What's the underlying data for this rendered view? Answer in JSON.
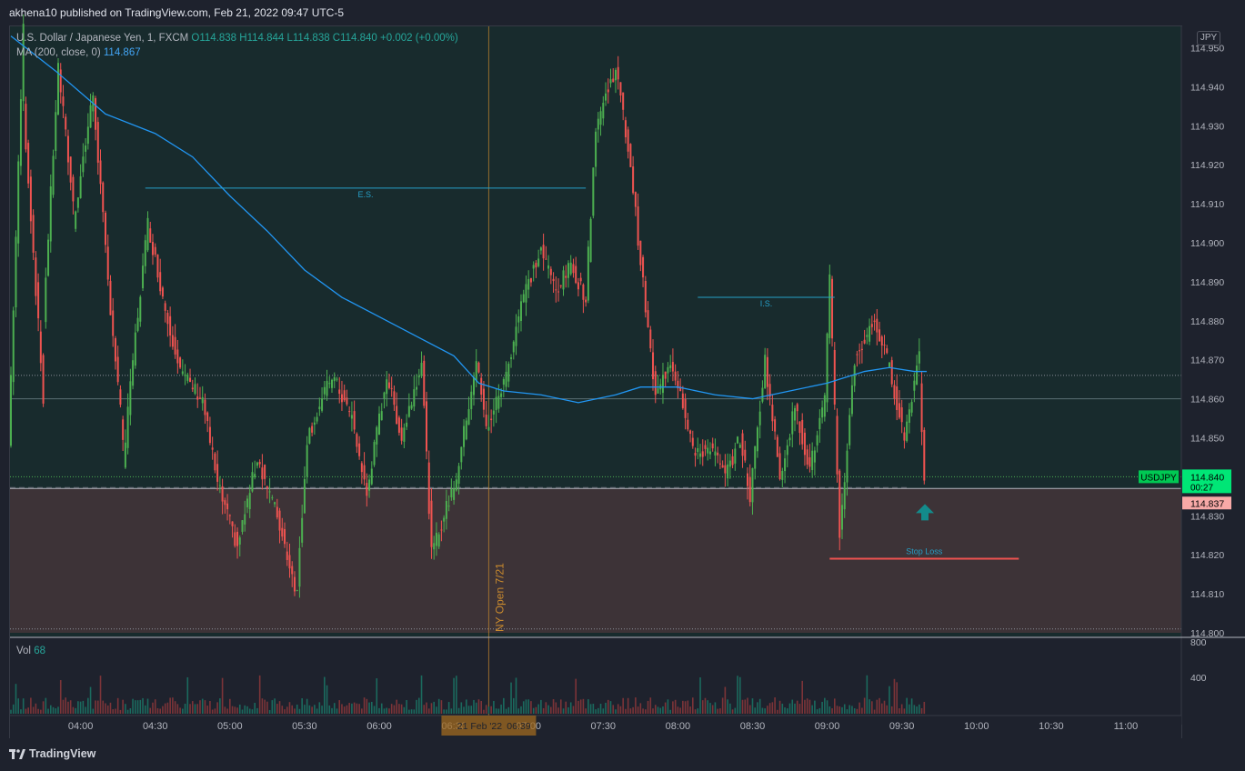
{
  "header": {
    "published_text": "akhena10 published on TradingView.com, Feb 21, 2022 09:47 UTC-5"
  },
  "legend": {
    "symbol": "U.S. Dollar / Japanese Yen, 1, FXCM",
    "ohlc": "O114.838  H114.844  L114.838  C114.840  +0.002 (+0.00%)",
    "ma_label": "MA (200, close, 0)",
    "ma_value": "114.867"
  },
  "volume": {
    "label": "Vol",
    "value": "68"
  },
  "currency_badge": "JPY",
  "footer": {
    "brand": "TradingView"
  },
  "colors": {
    "up": "#26a69a",
    "up_bright": "#4caf50",
    "down": "#ef5350",
    "ma": "#2196f3",
    "annotation_line": "#26a0c8",
    "stop_loss": "#ef5350",
    "price_badge": "#00e676",
    "prev_badge": "#f7a9a7",
    "arrow": "#138b8b",
    "ny_open": "#c98a2e"
  },
  "chart_data": {
    "type": "candlestick",
    "symbol": "USDJPY",
    "timeframe": "1",
    "y_ticks": [
      "114.950",
      "114.940",
      "114.930",
      "114.920",
      "114.910",
      "114.900",
      "114.890",
      "114.880",
      "114.870",
      "114.860",
      "114.850",
      "114.840",
      "114.830",
      "114.820",
      "114.810",
      "114.800"
    ],
    "ylim": [
      114.8,
      114.955
    ],
    "x_ticks": [
      "04:00",
      "04:30",
      "05:00",
      "05:30",
      "06:00",
      "06:30",
      "07:00",
      "07:30",
      "08:00",
      "08:30",
      "09:00",
      "09:30",
      "10:00",
      "10:30",
      "11:00"
    ],
    "x_tick_minutes": [
      240,
      270,
      300,
      330,
      360,
      390,
      420,
      450,
      480,
      510,
      540,
      570,
      600,
      630,
      660
    ],
    "x_range_minutes": [
      212,
      675
    ],
    "date_label": "21 Feb '22",
    "date_label_time": "06:39",
    "volume_ticks": [
      "800",
      "400"
    ],
    "current_price": {
      "label": "USDJPY",
      "value": "114.840",
      "countdown": "00:27"
    },
    "previous_close": "114.837",
    "annotations": [
      {
        "text": "E.S.",
        "price": 114.914,
        "from_minute": 266,
        "to_minute": 443
      },
      {
        "text": "I.S.",
        "price": 114.886,
        "from_minute": 488,
        "to_minute": 543
      },
      {
        "text": "Stop Loss",
        "price": 114.819,
        "from_minute": 541,
        "to_minute": 617
      }
    ],
    "dotted_levels": [
      114.866,
      114.84,
      114.801
    ],
    "solid_level": 114.86,
    "shaded_zone": [
      114.8,
      114.837
    ],
    "ny_open": {
      "text": "NY Open 7/21",
      "minute": 404
    },
    "ma_points": [
      [
        212,
        114.953
      ],
      [
        230,
        114.944
      ],
      [
        250,
        114.933
      ],
      [
        270,
        114.928
      ],
      [
        285,
        114.922
      ],
      [
        300,
        114.912
      ],
      [
        315,
        114.903
      ],
      [
        330,
        114.893
      ],
      [
        345,
        114.886
      ],
      [
        360,
        114.881
      ],
      [
        375,
        114.876
      ],
      [
        390,
        114.871
      ],
      [
        400,
        114.864
      ],
      [
        410,
        114.862
      ],
      [
        425,
        114.861
      ],
      [
        440,
        114.859
      ],
      [
        455,
        114.861
      ],
      [
        465,
        114.863
      ],
      [
        480,
        114.863
      ],
      [
        495,
        114.861
      ],
      [
        510,
        114.86
      ],
      [
        525,
        114.862
      ],
      [
        540,
        114.864
      ],
      [
        555,
        114.867
      ],
      [
        565,
        114.868
      ],
      [
        575,
        114.867
      ],
      [
        580,
        114.867
      ]
    ],
    "candles_key": [
      [
        212,
        114.848,
        114.955
      ],
      [
        218,
        114.935,
        114.86
      ],
      [
        226,
        114.88,
        114.945
      ],
      [
        232,
        114.945,
        114.91
      ],
      [
        238,
        114.905,
        114.938
      ],
      [
        246,
        114.938,
        114.89
      ],
      [
        252,
        114.89,
        114.85
      ],
      [
        258,
        114.842,
        114.87
      ],
      [
        262,
        114.87,
        114.905
      ],
      [
        268,
        114.905,
        114.88
      ],
      [
        276,
        114.88,
        114.866
      ],
      [
        282,
        114.866,
        114.86
      ],
      [
        290,
        114.86,
        114.838
      ],
      [
        296,
        114.838,
        114.822
      ],
      [
        304,
        114.822,
        114.845
      ],
      [
        312,
        114.845,
        114.83
      ],
      [
        320,
        114.83,
        114.81
      ],
      [
        328,
        114.812,
        114.85
      ],
      [
        332,
        114.85,
        114.866
      ],
      [
        342,
        114.866,
        114.855
      ],
      [
        350,
        114.855,
        114.835
      ],
      [
        356,
        114.836,
        114.866
      ],
      [
        364,
        114.866,
        114.85
      ],
      [
        370,
        114.85,
        114.87
      ],
      [
        378,
        114.87,
        114.82
      ],
      [
        382,
        114.82,
        114.84
      ],
      [
        392,
        114.84,
        114.87
      ],
      [
        400,
        114.87,
        114.852
      ],
      [
        404,
        114.852,
        114.866
      ],
      [
        412,
        114.866,
        114.885
      ],
      [
        418,
        114.885,
        114.898
      ],
      [
        426,
        114.898,
        114.888
      ],
      [
        432,
        114.888,
        114.894
      ],
      [
        438,
        114.894,
        114.886
      ],
      [
        444,
        114.886,
        114.93
      ],
      [
        448,
        114.93,
        114.945
      ],
      [
        456,
        114.945,
        114.92
      ],
      [
        462,
        114.92,
        114.895
      ],
      [
        466,
        114.895,
        114.86
      ],
      [
        472,
        114.86,
        114.87
      ],
      [
        478,
        114.87,
        114.862
      ],
      [
        482,
        114.862,
        114.845
      ],
      [
        488,
        114.845,
        114.848
      ],
      [
        494,
        114.848,
        114.84
      ],
      [
        500,
        114.84,
        114.85
      ],
      [
        506,
        114.85,
        114.835
      ],
      [
        510,
        114.835,
        114.87
      ],
      [
        516,
        114.87,
        114.84
      ],
      [
        522,
        114.84,
        114.858
      ],
      [
        528,
        114.858,
        114.842
      ],
      [
        534,
        114.842,
        114.86
      ],
      [
        540,
        114.86,
        114.89
      ],
      [
        542,
        114.89,
        114.825
      ],
      [
        546,
        114.825,
        114.87
      ],
      [
        552,
        114.87,
        114.88
      ],
      [
        560,
        114.88,
        114.868
      ],
      [
        566,
        114.868,
        114.85
      ],
      [
        572,
        114.85,
        114.872
      ],
      [
        578,
        114.865,
        114.84
      ],
      [
        580,
        114.84,
        114.84
      ]
    ]
  }
}
